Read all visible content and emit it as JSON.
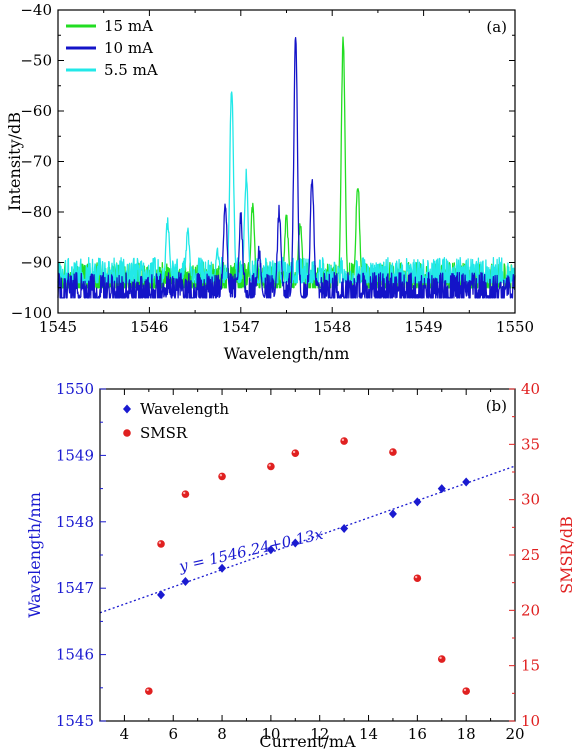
{
  "chart_data": [
    {
      "type": "line",
      "panel_label": "(a)",
      "xlabel": "Wavelength/nm",
      "ylabel": "Intensity/dB",
      "xlim": [
        1545,
        1550
      ],
      "ylim": [
        -100,
        -40
      ],
      "xticks": [
        "1545",
        "1546",
        "1547",
        "1548",
        "1549",
        "1550"
      ],
      "yticks": [
        "−100",
        "−90",
        "−80",
        "−70",
        "−60",
        "−50",
        "−40"
      ],
      "legend_position": "top-left",
      "series": [
        {
          "name": "15 mA",
          "color": "#22dd22",
          "noise_floor": -95,
          "peaks": [
            {
              "x": 1547.13,
              "y": -79
            },
            {
              "x": 1547.5,
              "y": -81
            },
            {
              "x": 1547.65,
              "y": -82
            },
            {
              "x": 1548.12,
              "y": -45
            },
            {
              "x": 1548.28,
              "y": -74
            }
          ]
        },
        {
          "name": "10 mA",
          "color": "#1414c8",
          "noise_floor": -97,
          "peaks": [
            {
              "x": 1546.83,
              "y": -78
            },
            {
              "x": 1547.0,
              "y": -81
            },
            {
              "x": 1547.2,
              "y": -88
            },
            {
              "x": 1547.42,
              "y": -80
            },
            {
              "x": 1547.6,
              "y": -46
            },
            {
              "x": 1547.78,
              "y": -73
            }
          ]
        },
        {
          "name": "5.5 mA",
          "color": "#22e8e8",
          "noise_floor": -94,
          "peaks": [
            {
              "x": 1546.2,
              "y": -82
            },
            {
              "x": 1546.42,
              "y": -84
            },
            {
              "x": 1546.75,
              "y": -88
            },
            {
              "x": 1546.9,
              "y": -55
            },
            {
              "x": 1547.06,
              "y": -73
            }
          ]
        }
      ]
    },
    {
      "type": "scatter",
      "panel_label": "(b)",
      "xlabel": "Current/mA",
      "ylabel_left": "Wavelength/nm",
      "ylabel_right": "SMSR/dB",
      "xlim": [
        3,
        20
      ],
      "ylim_left": [
        1545,
        1550
      ],
      "ylim_right": [
        10,
        40
      ],
      "xticks": [
        "4",
        "6",
        "8",
        "10",
        "12",
        "14",
        "16",
        "18",
        "20"
      ],
      "yticks_left": [
        "1545",
        "1546",
        "1547",
        "1548",
        "1549",
        "1550"
      ],
      "yticks_right": [
        "10",
        "15",
        "20",
        "25",
        "30",
        "35",
        "40"
      ],
      "legend_position": "top-left",
      "fit_label": "y = 1546.24+0.13x",
      "fit": {
        "intercept": 1546.24,
        "slope": 0.13
      },
      "series": [
        {
          "name": "Wavelength",
          "axis": "left",
          "color": "#1a1ad0",
          "x": [
            5.5,
            6.5,
            8,
            10,
            11,
            13,
            15,
            16,
            17,
            18
          ],
          "y": [
            1546.9,
            1547.1,
            1547.3,
            1547.58,
            1547.68,
            1547.9,
            1548.12,
            1548.3,
            1548.5,
            1548.6
          ]
        },
        {
          "name": "SMSR",
          "axis": "right",
          "color": "#e02020",
          "x": [
            5,
            5.5,
            6.5,
            8,
            10,
            11,
            13,
            15,
            16,
            17,
            18
          ],
          "y": [
            12.7,
            26.0,
            30.5,
            32.1,
            33.0,
            34.2,
            35.3,
            34.3,
            22.9,
            15.6,
            12.7
          ]
        }
      ]
    }
  ]
}
